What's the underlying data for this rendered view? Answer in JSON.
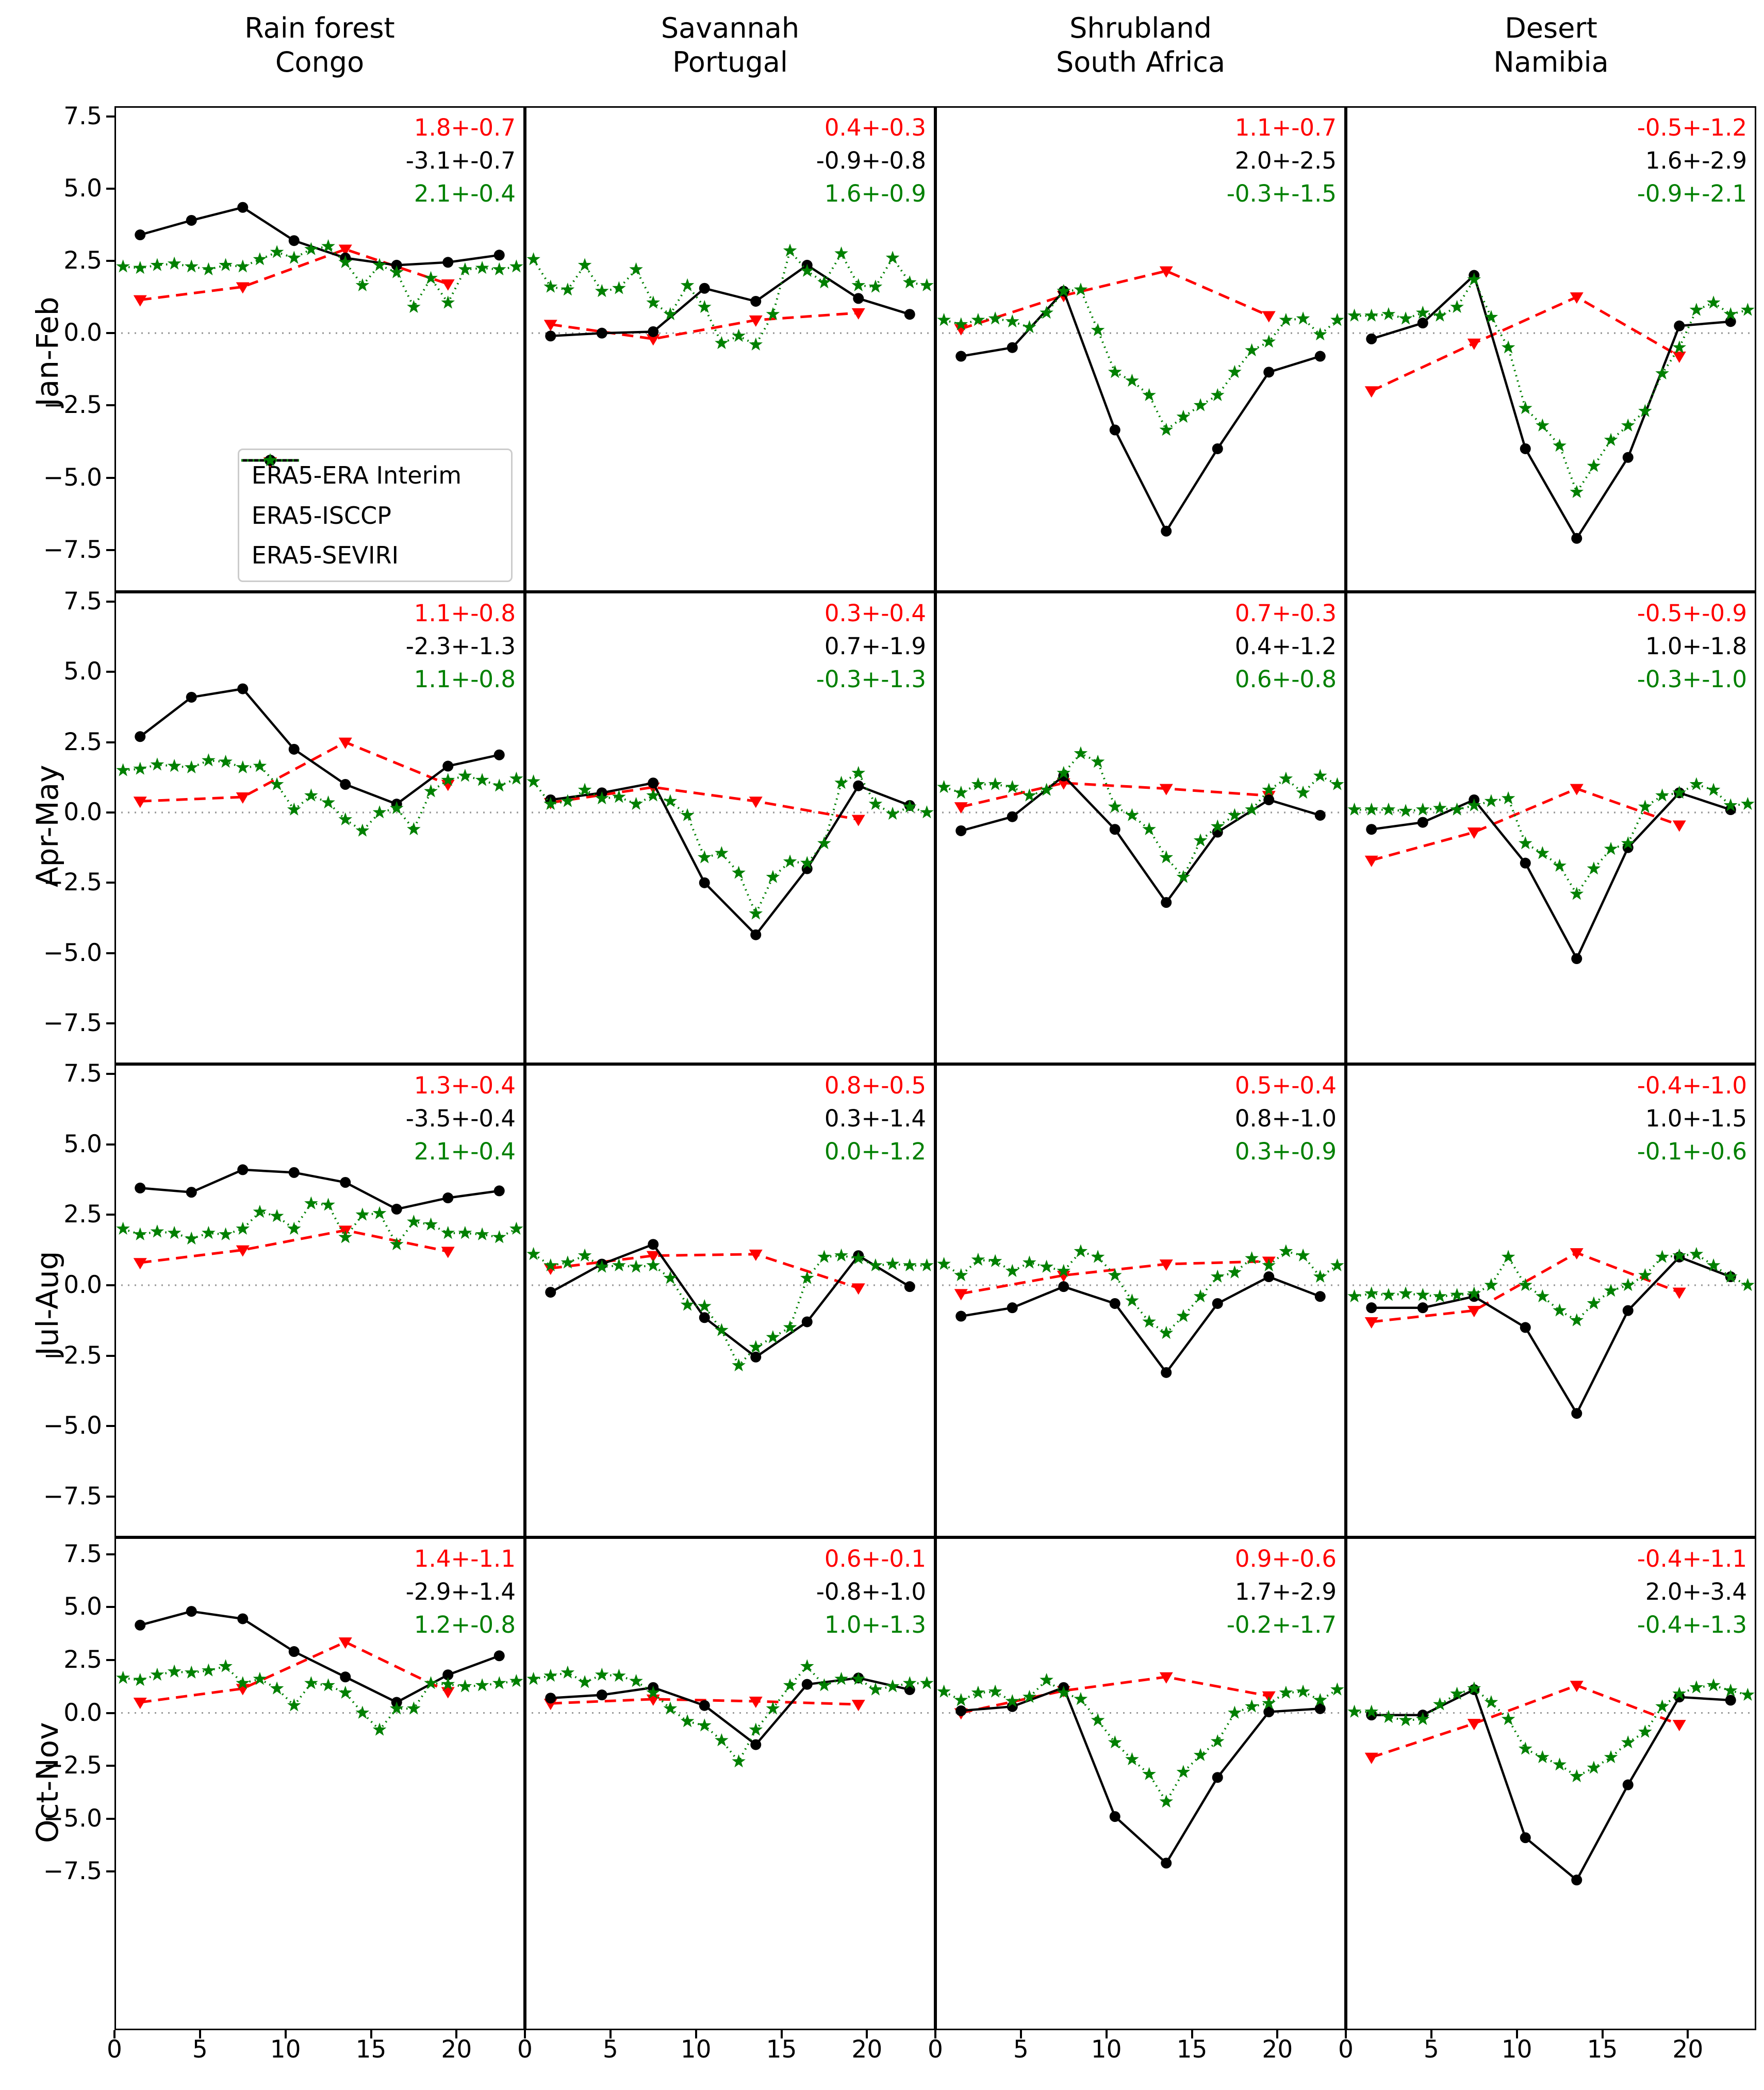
{
  "figure_title": "",
  "legend": {
    "items": [
      {
        "label": "ERA5-ERA Interim",
        "color": "#ff0000",
        "line": "dashed",
        "marker": "triangle-down"
      },
      {
        "label": "ERA5-ISCCP",
        "color": "#000000",
        "line": "solid",
        "marker": "circle"
      },
      {
        "label": "ERA5-SEVIRI",
        "color": "#008000",
        "line": "dotted",
        "marker": "star"
      }
    ]
  },
  "chart_data": {
    "type": "line",
    "grid_on": false,
    "legend_position": "lower-right-of-first-panel",
    "columns": [
      [
        "Rain forest",
        "Congo"
      ],
      [
        "Savannah",
        "Portugal"
      ],
      [
        "Shrubland",
        "South Africa"
      ],
      [
        "Desert",
        "Namibia"
      ]
    ],
    "rows": [
      {
        "label": "Jan-Feb",
        "ylim": [
          7.85,
          -8.95
        ]
      },
      {
        "label": "Apr-May",
        "ylim": [
          7.85,
          -8.95
        ]
      },
      {
        "label": "Jul-Aug",
        "ylim": [
          7.85,
          -8.95
        ]
      },
      {
        "label": "Oct-Nov",
        "ylim": [
          8.3,
          -15.0
        ]
      }
    ],
    "xlim": [
      0,
      24
    ],
    "xticks": [
      0,
      5,
      10,
      15,
      20
    ],
    "xtick_labels": [
      "0",
      "5",
      "10",
      "15",
      "20"
    ],
    "yticks": [
      7.5,
      5.0,
      2.5,
      0.0,
      -2.5,
      -5.0,
      -7.5
    ],
    "ytick_labels": [
      "7.5",
      "5.0",
      "2.5",
      "0.0",
      "−2.5",
      "−5.0",
      "−7.5"
    ],
    "zero_line": 0,
    "series_x": {
      "era_interim": [
        1.5,
        7.5,
        13.5,
        19.5
      ],
      "isccp": [
        1.5,
        4.5,
        7.5,
        10.5,
        13.5,
        16.5,
        19.5,
        22.5
      ],
      "seviri": [
        0.5,
        1.5,
        2.5,
        3.5,
        4.5,
        5.5,
        6.5,
        7.5,
        8.5,
        9.5,
        10.5,
        11.5,
        12.5,
        13.5,
        14.5,
        15.5,
        16.5,
        17.5,
        18.5,
        19.5,
        20.5,
        21.5,
        22.5,
        23.5
      ]
    },
    "series_names": {
      "era_interim": "ERA5-ERA Interim",
      "isccp": "ERA5-ISCCP",
      "seviri": "ERA5-SEVIRI"
    },
    "panels": [
      {
        "row": "Jan-Feb",
        "col": "Rain forest Congo",
        "annotations": [
          "1.8+-0.7",
          "-3.1+-0.7",
          "2.1+-0.4"
        ],
        "era_interim": [
          1.15,
          1.6,
          2.9,
          1.7
        ],
        "isccp": [
          3.4,
          3.9,
          4.35,
          3.2,
          2.6,
          2.35,
          2.45,
          2.7
        ],
        "seviri": [
          2.3,
          2.25,
          2.35,
          2.4,
          2.3,
          2.2,
          2.35,
          2.3,
          2.55,
          2.8,
          2.6,
          2.9,
          3.0,
          2.45,
          1.65,
          2.35,
          2.1,
          0.9,
          1.9,
          1.05,
          2.2,
          2.25,
          2.2,
          2.3
        ]
      },
      {
        "row": "Jan-Feb",
        "col": "Savannah Portugal",
        "annotations": [
          "0.4+-0.3",
          "-0.9+-0.8",
          "1.6+-0.9"
        ],
        "era_interim": [
          0.3,
          -0.2,
          0.45,
          0.7
        ],
        "isccp": [
          -0.1,
          0.0,
          0.05,
          1.55,
          1.1,
          2.35,
          1.2,
          0.65
        ],
        "seviri": [
          2.55,
          1.6,
          1.5,
          2.35,
          1.45,
          1.55,
          2.2,
          1.05,
          0.65,
          1.65,
          0.9,
          -0.35,
          -0.1,
          -0.4,
          0.65,
          2.85,
          2.15,
          1.75,
          2.75,
          1.65,
          1.6,
          2.6,
          1.75,
          1.65
        ]
      },
      {
        "row": "Jan-Feb",
        "col": "Shrubland South Africa",
        "annotations": [
          "1.1+-0.7",
          "2.0+-2.5",
          "-0.3+-1.5"
        ],
        "era_interim": [
          0.15,
          1.3,
          2.15,
          0.6
        ],
        "isccp": [
          -0.8,
          -0.5,
          1.45,
          -3.35,
          -6.85,
          -4.0,
          -1.35,
          -0.8
        ],
        "seviri": [
          0.45,
          0.3,
          0.45,
          0.5,
          0.4,
          0.2,
          0.7,
          1.45,
          1.5,
          0.1,
          -1.35,
          -1.65,
          -2.15,
          -3.35,
          -2.9,
          -2.5,
          -2.15,
          -1.35,
          -0.6,
          -0.3,
          0.45,
          0.5,
          -0.05,
          0.45
        ]
      },
      {
        "row": "Jan-Feb",
        "col": "Desert Namibia",
        "annotations": [
          "-0.5+-1.2",
          "1.6+-2.9",
          "-0.9+-2.1"
        ],
        "era_interim": [
          -2.0,
          -0.35,
          1.25,
          -0.8
        ],
        "isccp": [
          -0.2,
          0.35,
          2.0,
          -4.0,
          -7.1,
          -4.3,
          0.25,
          0.4
        ],
        "seviri": [
          0.6,
          0.6,
          0.65,
          0.5,
          0.7,
          0.6,
          0.9,
          1.85,
          0.55,
          -0.5,
          -2.6,
          -3.2,
          -3.9,
          -5.5,
          -4.6,
          -3.7,
          -3.2,
          -2.7,
          -1.4,
          -0.5,
          0.8,
          1.05,
          0.65,
          0.8
        ]
      },
      {
        "row": "Apr-May",
        "col": "Rain forest Congo",
        "annotations": [
          "1.1+-0.8",
          "-2.3+-1.3",
          "1.1+-0.8"
        ],
        "era_interim": [
          0.4,
          0.55,
          2.5,
          1.0
        ],
        "isccp": [
          2.7,
          4.1,
          4.4,
          2.25,
          1.0,
          0.3,
          1.65,
          2.05
        ],
        "seviri": [
          1.5,
          1.55,
          1.7,
          1.65,
          1.6,
          1.85,
          1.8,
          1.6,
          1.65,
          1.0,
          0.1,
          0.6,
          0.35,
          -0.25,
          -0.65,
          0.0,
          0.15,
          -0.6,
          0.75,
          1.15,
          1.3,
          1.15,
          0.95,
          1.2
        ]
      },
      {
        "row": "Apr-May",
        "col": "Savannah Portugal",
        "annotations": [
          "0.3+-0.4",
          "0.7+-1.9",
          "-0.3+-1.3"
        ],
        "era_interim": [
          0.35,
          0.9,
          0.4,
          -0.25
        ],
        "isccp": [
          0.45,
          0.7,
          1.05,
          -2.5,
          -4.35,
          -2.0,
          0.95,
          0.25
        ],
        "seviri": [
          1.1,
          0.3,
          0.4,
          0.8,
          0.5,
          0.55,
          0.3,
          0.6,
          0.4,
          -0.1,
          -1.6,
          -1.45,
          -2.15,
          -3.6,
          -2.3,
          -1.75,
          -1.8,
          -1.1,
          1.05,
          1.4,
          0.3,
          -0.05,
          0.2,
          0.0
        ]
      },
      {
        "row": "Apr-May",
        "col": "Shrubland South Africa",
        "annotations": [
          "0.7+-0.3",
          "0.4+-1.2",
          "0.6+-0.8"
        ],
        "era_interim": [
          0.2,
          1.05,
          0.85,
          0.6
        ],
        "isccp": [
          -0.65,
          -0.15,
          1.3,
          -0.6,
          -3.2,
          -0.7,
          0.45,
          -0.1
        ],
        "seviri": [
          0.9,
          0.7,
          1.0,
          1.0,
          0.9,
          0.6,
          0.8,
          1.4,
          2.1,
          1.8,
          0.2,
          -0.1,
          -0.6,
          -1.6,
          -2.3,
          -1.0,
          -0.5,
          -0.1,
          0.1,
          0.8,
          1.2,
          0.7,
          1.3,
          1.0
        ]
      },
      {
        "row": "Apr-May",
        "col": "Desert Namibia",
        "annotations": [
          "-0.5+-0.9",
          "1.0+-1.8",
          "-0.3+-1.0"
        ],
        "era_interim": [
          -1.7,
          -0.7,
          0.85,
          -0.45
        ],
        "isccp": [
          -0.6,
          -0.35,
          0.45,
          -1.8,
          -5.2,
          -1.25,
          0.7,
          0.1
        ],
        "seviri": [
          0.1,
          0.1,
          0.1,
          0.05,
          0.1,
          0.15,
          0.1,
          0.25,
          0.4,
          0.5,
          -1.1,
          -1.45,
          -1.9,
          -2.9,
          -2.0,
          -1.3,
          -1.1,
          0.2,
          0.6,
          0.7,
          1.0,
          0.8,
          0.25,
          0.3
        ]
      },
      {
        "row": "Jul-Aug",
        "col": "Rain forest Congo",
        "annotations": [
          "1.3+-0.4",
          "-3.5+-0.4",
          "2.1+-0.4"
        ],
        "era_interim": [
          0.8,
          1.25,
          1.95,
          1.2
        ],
        "isccp": [
          3.45,
          3.3,
          4.1,
          4.0,
          3.65,
          2.7,
          3.1,
          3.35
        ],
        "seviri": [
          2.0,
          1.8,
          1.9,
          1.85,
          1.65,
          1.85,
          1.8,
          2.0,
          2.6,
          2.45,
          2.0,
          2.9,
          2.85,
          1.7,
          2.5,
          2.55,
          1.45,
          2.25,
          2.15,
          1.85,
          1.85,
          1.8,
          1.7,
          2.0
        ]
      },
      {
        "row": "Jul-Aug",
        "col": "Savannah Portugal",
        "annotations": [
          "0.8+-0.5",
          "0.3+-1.4",
          "0.0+-1.2"
        ],
        "era_interim": [
          0.6,
          1.05,
          1.1,
          -0.1
        ],
        "isccp": [
          -0.25,
          0.75,
          1.45,
          -1.15,
          -2.55,
          -1.3,
          1.05,
          -0.05
        ],
        "seviri": [
          1.1,
          0.7,
          0.8,
          1.05,
          0.65,
          0.7,
          0.65,
          0.7,
          0.25,
          -0.7,
          -0.75,
          -1.6,
          -2.85,
          -2.2,
          -1.85,
          -1.5,
          0.25,
          1.0,
          1.05,
          0.95,
          0.7,
          0.75,
          0.7,
          0.7
        ]
      },
      {
        "row": "Jul-Aug",
        "col": "Shrubland South Africa",
        "annotations": [
          "0.5+-0.4",
          "0.8+-1.0",
          "0.3+-0.9"
        ],
        "era_interim": [
          -0.3,
          0.35,
          0.75,
          0.85
        ],
        "isccp": [
          -1.1,
          -0.8,
          -0.05,
          -0.65,
          -3.1,
          -0.65,
          0.3,
          -0.4
        ],
        "seviri": [
          0.75,
          0.35,
          0.9,
          0.85,
          0.5,
          0.8,
          0.65,
          0.5,
          1.2,
          1.0,
          0.35,
          -0.55,
          -1.3,
          -1.7,
          -1.1,
          -0.4,
          0.3,
          0.45,
          0.95,
          0.7,
          1.2,
          1.05,
          0.3,
          0.7
        ]
      },
      {
        "row": "Jul-Aug",
        "col": "Desert Namibia",
        "annotations": [
          "-0.4+-1.0",
          "1.0+-1.5",
          "-0.1+-0.6"
        ],
        "era_interim": [
          -1.3,
          -0.9,
          1.15,
          -0.25
        ],
        "isccp": [
          -0.8,
          -0.8,
          -0.4,
          -1.5,
          -4.55,
          -0.9,
          1.0,
          0.3
        ],
        "seviri": [
          -0.4,
          -0.3,
          -0.35,
          -0.3,
          -0.35,
          -0.4,
          -0.35,
          -0.3,
          0.0,
          1.0,
          0.0,
          -0.4,
          -0.9,
          -1.25,
          -0.65,
          -0.2,
          0.0,
          0.35,
          1.0,
          1.05,
          1.1,
          0.7,
          0.3,
          0.0
        ]
      },
      {
        "row": "Oct-Nov",
        "col": "Rain forest Congo",
        "annotations": [
          "1.4+-1.1",
          "-2.9+-1.4",
          "1.2+-0.8"
        ],
        "era_interim": [
          0.5,
          1.15,
          3.35,
          1.0
        ],
        "isccp": [
          4.15,
          4.8,
          4.45,
          2.9,
          1.7,
          0.5,
          1.8,
          2.7
        ],
        "seviri": [
          1.65,
          1.55,
          1.8,
          1.95,
          1.9,
          2.0,
          2.2,
          1.4,
          1.6,
          1.15,
          0.35,
          1.4,
          1.3,
          0.95,
          0.0,
          -0.8,
          0.2,
          0.2,
          1.4,
          1.35,
          1.25,
          1.3,
          1.4,
          1.5
        ]
      },
      {
        "row": "Oct-Nov",
        "col": "Savannah Portugal",
        "annotations": [
          "0.6+-0.1",
          "-0.8+-1.0",
          "1.0+-1.3"
        ],
        "era_interim": [
          0.45,
          0.65,
          0.55,
          0.4
        ],
        "isccp": [
          0.7,
          0.85,
          1.2,
          0.35,
          -1.5,
          1.35,
          1.65,
          1.1
        ],
        "seviri": [
          1.6,
          1.75,
          1.9,
          1.45,
          1.8,
          1.75,
          1.5,
          0.95,
          0.2,
          -0.4,
          -0.6,
          -1.3,
          -2.3,
          -0.8,
          0.2,
          1.3,
          2.2,
          1.3,
          1.6,
          1.6,
          1.1,
          1.25,
          1.4,
          1.4
        ]
      },
      {
        "row": "Oct-Nov",
        "col": "Shrubland South Africa",
        "annotations": [
          "0.9+-0.6",
          "1.7+-2.9",
          "-0.2+-1.7"
        ],
        "era_interim": [
          0.0,
          1.05,
          1.7,
          0.8
        ],
        "isccp": [
          0.1,
          0.3,
          1.2,
          -4.9,
          -7.1,
          -3.05,
          0.05,
          0.2
        ],
        "seviri": [
          1.0,
          0.6,
          0.95,
          1.0,
          0.55,
          0.75,
          1.55,
          0.95,
          0.65,
          -0.35,
          -1.4,
          -2.2,
          -2.9,
          -4.2,
          -2.8,
          -2.0,
          -1.35,
          0.0,
          0.3,
          0.45,
          0.95,
          1.0,
          0.6,
          1.1
        ]
      },
      {
        "row": "Oct-Nov",
        "col": "Desert Namibia",
        "annotations": [
          "-0.4+-1.1",
          "2.0+-3.4",
          "-0.4+-1.3"
        ],
        "era_interim": [
          -2.1,
          -0.5,
          1.3,
          -0.55
        ],
        "isccp": [
          -0.1,
          -0.1,
          1.1,
          -5.9,
          -7.9,
          -3.4,
          0.75,
          0.6
        ],
        "seviri": [
          0.05,
          0.05,
          -0.2,
          -0.35,
          -0.3,
          0.4,
          0.9,
          1.15,
          0.5,
          -0.3,
          -1.7,
          -2.1,
          -2.45,
          -3.0,
          -2.6,
          -2.1,
          -1.4,
          -0.9,
          0.3,
          0.9,
          1.2,
          1.3,
          1.05,
          0.85
        ]
      }
    ]
  },
  "colors": {
    "era_interim": "#ff0000",
    "isccp": "#000000",
    "seviri": "#008000",
    "zero_line": "#999999",
    "panel_border": "#000000",
    "annotation_colors": [
      "#ff0000",
      "#000000",
      "#008000"
    ]
  }
}
